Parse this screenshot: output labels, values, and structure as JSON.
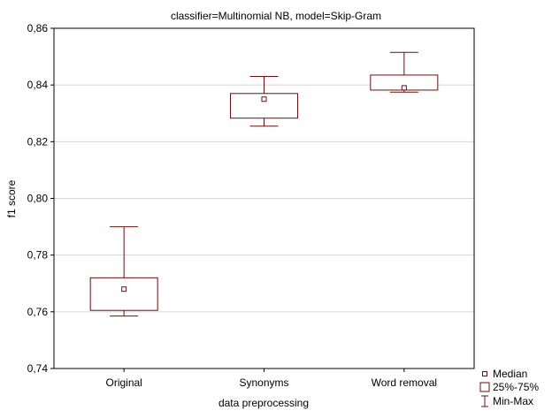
{
  "chart_data": {
    "type": "box",
    "title": "classifier=Multinomial NB, model=Skip-Gram",
    "xlabel": "data preprocessing",
    "ylabel": "f1 score",
    "ylim": [
      0.74,
      0.86
    ],
    "yticks": [
      0.74,
      0.76,
      0.78,
      0.8,
      0.82,
      0.84,
      0.86
    ],
    "ytick_labels": [
      "0,74",
      "0,76",
      "0,78",
      "0,80",
      "0,82",
      "0,84",
      "0,86"
    ],
    "grid": true,
    "legend_placement": "bottom-right",
    "categories": [
      "Original",
      "Synonyms",
      "Word removal"
    ],
    "boxes": [
      {
        "category": "Original",
        "min": 0.7585,
        "q1": 0.7605,
        "median": 0.768,
        "q3": 0.772,
        "max": 0.79
      },
      {
        "category": "Synonyms",
        "min": 0.8255,
        "q1": 0.8283,
        "median": 0.835,
        "q3": 0.837,
        "max": 0.843
      },
      {
        "category": "Word removal",
        "min": 0.8375,
        "q1": 0.8382,
        "median": 0.839,
        "q3": 0.8435,
        "max": 0.8515
      }
    ],
    "legend": [
      {
        "key": "median",
        "label": "Median"
      },
      {
        "key": "box",
        "label": "25%-75%"
      },
      {
        "key": "whisker",
        "label": "Min-Max"
      }
    ],
    "colors": {
      "box": "#6b0f0f",
      "grid": "#d4d4d4",
      "axis": "#000000"
    }
  }
}
